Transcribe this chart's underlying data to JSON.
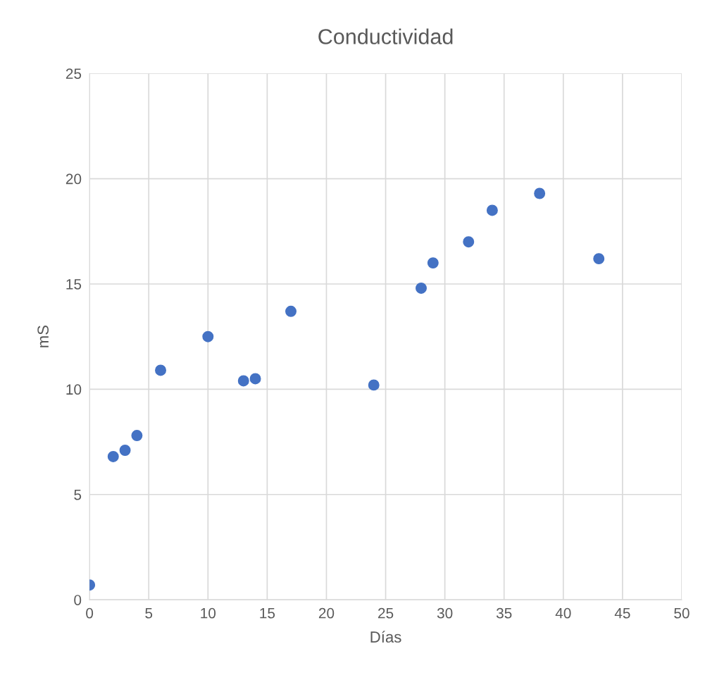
{
  "chart_data": {
    "type": "scatter",
    "title": "Conductividad",
    "xlabel": "Días",
    "ylabel": "mS",
    "x": [
      0,
      2,
      3,
      4,
      6,
      10,
      13,
      14,
      17,
      24,
      28,
      29,
      32,
      34,
      38,
      43
    ],
    "series": [
      {
        "color": "#4472c4",
        "values": [
          0.7,
          6.8,
          7.1,
          7.8,
          10.9,
          12.5,
          10.4,
          10.5,
          13.7,
          10.2,
          14.8,
          16.0,
          17.0,
          18.5,
          19.3,
          16.2
        ]
      }
    ],
    "xlim": [
      0,
      50
    ],
    "xticks": [
      0,
      5,
      10,
      15,
      20,
      25,
      30,
      35,
      40,
      45,
      50
    ],
    "ylim": [
      0,
      25
    ],
    "yticks": [
      0,
      5,
      10,
      15,
      20,
      25
    ],
    "grid": true,
    "marker": "circle"
  }
}
